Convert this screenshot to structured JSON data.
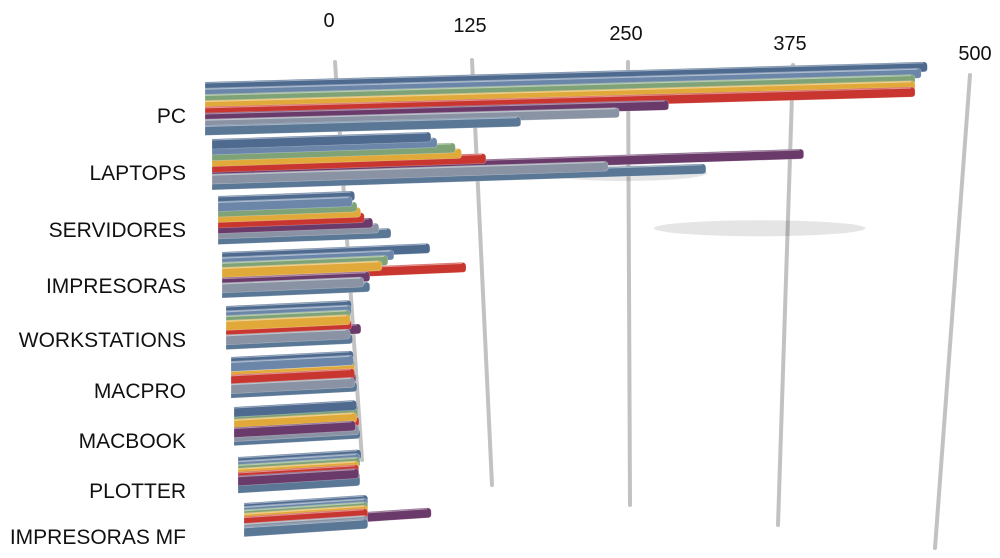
{
  "chart_data": {
    "type": "bar",
    "orientation": "horizontal",
    "style": "3d-perspective",
    "categories": [
      "PC",
      "LAPTOPS",
      "SERVIDORES",
      "IMPRESORAS",
      "WORKSTATIONS",
      "MACPRO",
      "MACBOOK",
      "PLOTTER",
      "IMPRESORAS MF"
    ],
    "x_ticks": [
      "0",
      "125",
      "250",
      "375",
      "500"
    ],
    "xlim": [
      0,
      500
    ],
    "grid": true,
    "legend": "none",
    "series": [
      {
        "color": "#4e6a8f",
        "values": [
          480,
          75,
          10,
          70,
          2,
          1,
          1,
          2,
          5
        ]
      },
      {
        "color": "#6b86a8",
        "values": [
          475,
          80,
          8,
          40,
          2,
          1,
          2,
          1,
          5
        ]
      },
      {
        "color": "#7fa377",
        "values": [
          470,
          95,
          12,
          35,
          1,
          2,
          2,
          1,
          5
        ]
      },
      {
        "color": "#e0a93a",
        "values": [
          470,
          100,
          15,
          30,
          1,
          2,
          1,
          0,
          5
        ]
      },
      {
        "color": "#c8362f",
        "values": [
          470,
          120,
          18,
          100,
          2,
          2,
          3,
          0,
          5
        ]
      },
      {
        "color": "#6a3a6a",
        "values": [
          270,
          380,
          25,
          20,
          10,
          3,
          0,
          0,
          60
        ]
      },
      {
        "color": "#8a93a3",
        "values": [
          230,
          220,
          30,
          15,
          1,
          2,
          3,
          1,
          5
        ]
      },
      {
        "color": "#5a7796",
        "values": [
          150,
          300,
          40,
          20,
          3,
          4,
          4,
          1,
          5
        ]
      }
    ]
  }
}
